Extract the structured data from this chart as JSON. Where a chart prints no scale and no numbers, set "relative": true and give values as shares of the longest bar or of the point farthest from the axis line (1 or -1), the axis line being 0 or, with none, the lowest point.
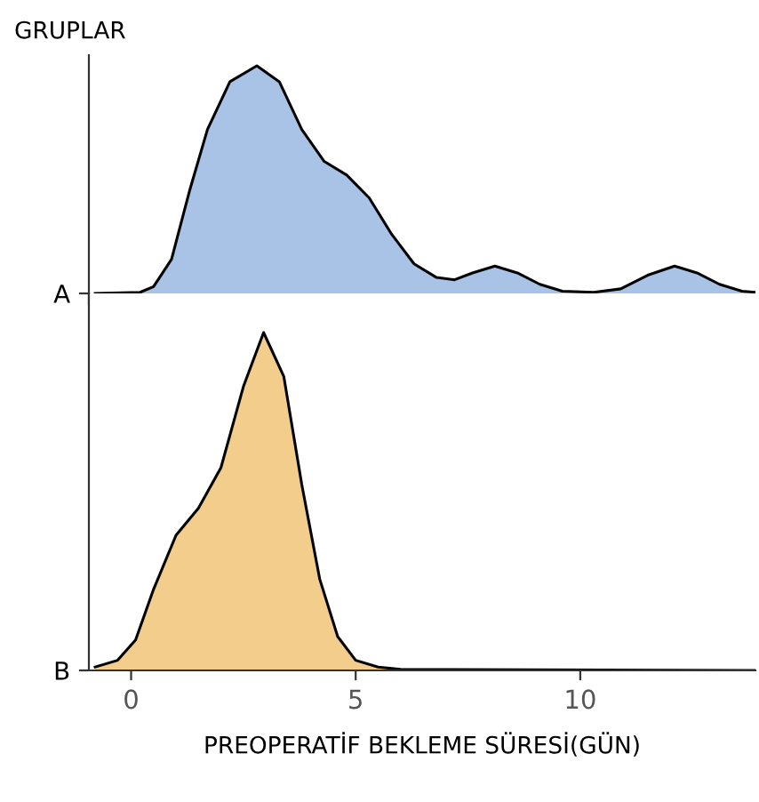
{
  "chart_data": [
    {
      "type": "area",
      "relative": true,
      "ylabel": "GRUPLAR",
      "xlim": [
        -0.94,
        13.9
      ],
      "tick_labels": false,
      "series": [
        {
          "name": "A",
          "color": "#a8c3e6",
          "x": [
            -0.8,
            0.2,
            0.5,
            0.9,
            1.3,
            1.7,
            2.2,
            2.8,
            3.3,
            3.8,
            4.3,
            4.8,
            5.3,
            5.8,
            6.3,
            6.8,
            7.2,
            7.6,
            8.1,
            8.6,
            9.1,
            9.6,
            10.3,
            10.9,
            11.5,
            12.1,
            12.6,
            13.1,
            13.6,
            13.9
          ],
          "values": [
            0,
            0.005,
            0.03,
            0.15,
            0.45,
            0.72,
            0.93,
            1.0,
            0.93,
            0.72,
            0.58,
            0.52,
            0.42,
            0.26,
            0.13,
            0.07,
            0.06,
            0.09,
            0.12,
            0.09,
            0.04,
            0.01,
            0.005,
            0.02,
            0.08,
            0.12,
            0.09,
            0.04,
            0.01,
            0.005
          ]
        }
      ]
    },
    {
      "type": "area",
      "relative": true,
      "xlabel": "PREOPERATİF BEKLEME SÜRESİ(GÜN)",
      "xlim": [
        -0.94,
        13.9
      ],
      "xticks": [
        0,
        5,
        10
      ],
      "tick_labels": "x",
      "series": [
        {
          "name": "B",
          "color": "#f2cd8c",
          "x": [
            -0.8,
            -0.3,
            0.1,
            0.5,
            1.0,
            1.5,
            2.0,
            2.5,
            2.95,
            3.4,
            3.8,
            4.2,
            4.6,
            5.0,
            5.5,
            6.0,
            13.9
          ],
          "values": [
            0.01,
            0.03,
            0.09,
            0.24,
            0.4,
            0.48,
            0.6,
            0.84,
            1.0,
            0.87,
            0.55,
            0.27,
            0.1,
            0.03,
            0.01,
            0.003,
            0
          ]
        }
      ]
    }
  ]
}
